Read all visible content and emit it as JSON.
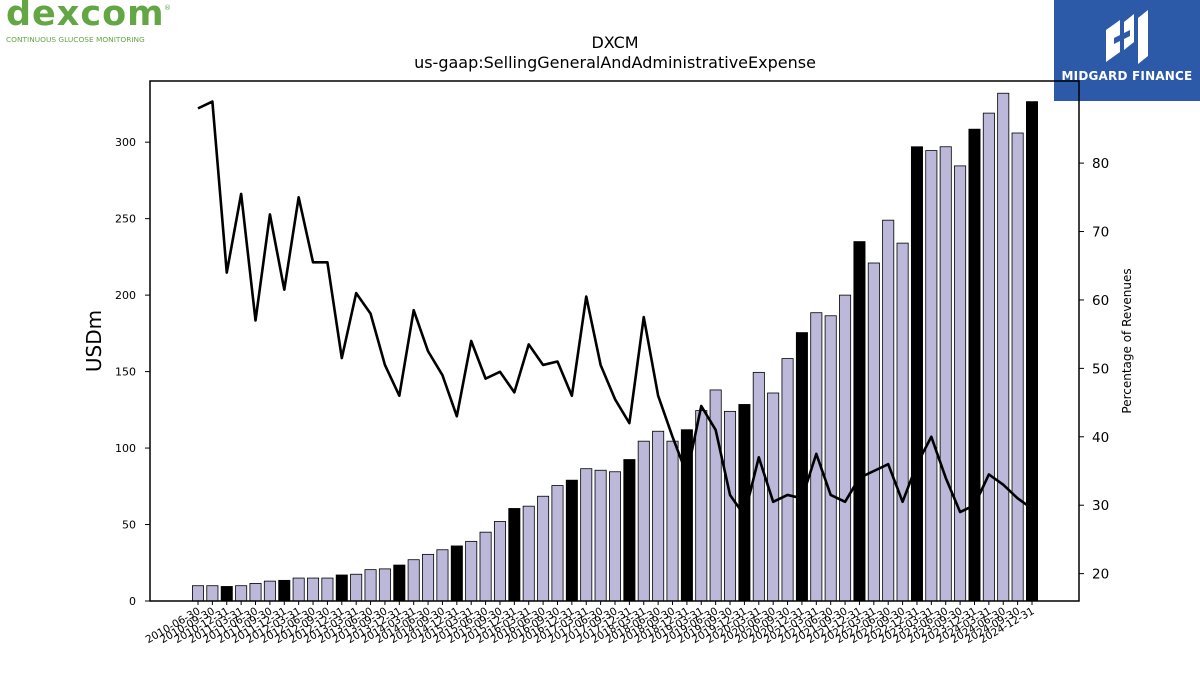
{
  "logos": {
    "left_wordmark": "dexcom",
    "left_tagline": "CONTINUOUS GLUCOSE MONITORING",
    "right_name": "MIDGARD FINANCE"
  },
  "chart_data": {
    "type": "bar",
    "title": "DXCM",
    "subtitle": "us-gaap:SellingGeneralAndAdministrativeExpense",
    "ylabel": "USDm",
    "y2label": "Percentage of Revenues",
    "ylim": [
      0,
      340
    ],
    "y2lim": [
      16,
      92
    ],
    "yticks": [
      0,
      50,
      100,
      150,
      200,
      250,
      300
    ],
    "y2ticks": [
      20,
      30,
      40,
      50,
      60,
      70,
      80
    ],
    "grid": false,
    "colors": {
      "bar_quarter": "#bcb8da",
      "bar_year_end": "#000000",
      "line": "#000000"
    },
    "categories": [
      "2010-06-30",
      "2010-09-30",
      "2010-12-31",
      "2011-03-31",
      "2011-06-30",
      "2011-09-30",
      "2011-12-31",
      "2012-03-31",
      "2012-06-30",
      "2012-09-30",
      "2012-12-31",
      "2013-03-31",
      "2013-06-30",
      "2013-09-30",
      "2013-12-31",
      "2014-03-31",
      "2014-06-30",
      "2014-09-30",
      "2014-12-31",
      "2015-03-31",
      "2015-06-30",
      "2015-09-30",
      "2015-12-31",
      "2016-03-31",
      "2016-06-30",
      "2016-09-30",
      "2016-12-31",
      "2017-03-31",
      "2017-06-30",
      "2017-09-30",
      "2017-12-31",
      "2018-03-31",
      "2018-06-30",
      "2018-09-30",
      "2018-12-31",
      "2019-03-31",
      "2019-06-30",
      "2019-09-30",
      "2019-12-31",
      "2020-03-31",
      "2020-06-30",
      "2020-09-30",
      "2020-12-31",
      "2021-03-31",
      "2021-06-30",
      "2021-09-30",
      "2021-12-31",
      "2022-03-31",
      "2022-06-30",
      "2022-09-30",
      "2022-12-31",
      "2023-03-31",
      "2023-06-30",
      "2023-09-30",
      "2023-12-31",
      "2024-03-31",
      "2024-06-30",
      "2024-09-30",
      "2024-12-31"
    ],
    "series": [
      {
        "kind": "bar",
        "values": [
          10,
          10,
          9.5,
          10,
          11.5,
          13,
          13.5,
          15,
          15,
          15,
          17,
          17.5,
          20.5,
          21,
          23.5,
          27,
          30.5,
          33.5,
          36,
          39,
          45,
          52,
          60.5,
          62,
          68.5,
          75.5,
          79,
          86.5,
          85.5,
          84.5,
          92.5,
          104.5,
          111,
          104.5,
          112,
          124.5,
          138,
          124,
          128.5,
          149.5,
          136,
          158.5,
          175.5,
          188.5,
          186.5,
          200,
          235,
          221,
          249,
          234,
          297,
          294.5,
          297,
          284.5,
          308.5,
          319,
          332,
          306,
          326.5
        ],
        "year_end": [
          false,
          false,
          true,
          false,
          false,
          false,
          true,
          false,
          false,
          false,
          true,
          false,
          false,
          false,
          true,
          false,
          false,
          false,
          true,
          false,
          false,
          false,
          true,
          false,
          false,
          false,
          true,
          false,
          false,
          false,
          true,
          false,
          false,
          false,
          true,
          false,
          false,
          false,
          true,
          false,
          false,
          false,
          true,
          false,
          false,
          false,
          true,
          false,
          false,
          false,
          true,
          false,
          false,
          false,
          true,
          false,
          false,
          false,
          true
        ]
      },
      {
        "kind": "line",
        "axis": "right",
        "values": [
          88,
          89,
          64,
          75.5,
          57,
          72.5,
          61.5,
          75,
          65.5,
          65.5,
          51.5,
          61,
          58,
          50.5,
          46,
          58.5,
          52.5,
          49,
          43,
          54,
          48.5,
          49.5,
          46.5,
          53.5,
          50.5,
          51,
          46,
          60.5,
          50.5,
          45.5,
          42,
          57.5,
          46,
          40,
          34.5,
          44.5,
          41,
          31.5,
          28.5,
          37,
          30.5,
          31.5,
          31,
          37.5,
          31.5,
          30.5,
          34,
          35,
          36,
          30.5,
          36,
          40,
          34,
          29,
          30,
          34.5,
          33,
          31,
          29.5
        ]
      }
    ]
  }
}
